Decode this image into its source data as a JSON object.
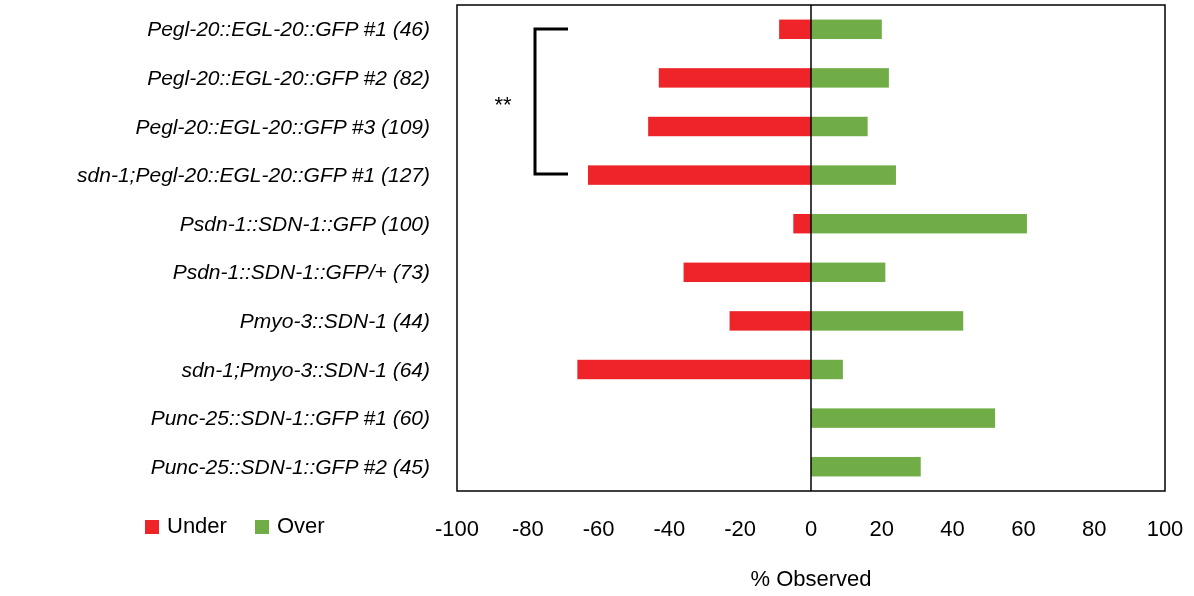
{
  "chart_data": {
    "type": "bar",
    "orientation": "horizontal",
    "stacked": true,
    "categories": [
      "Pegl-20::EGL-20::GFP #1 (46)",
      "Pegl-20::EGL-20::GFP #2 (82)",
      "Pegl-20::EGL-20::GFP #3 (109)",
      "sdn-1;Pegl-20::EGL-20::GFP #1 (127)",
      "Psdn-1::SDN-1::GFP (100)",
      "Psdn-1::SDN-1::GFP/+ (73)",
      "Pmyo-3::SDN-1 (44)",
      "sdn-1;Pmyo-3::SDN-1 (64)",
      "Punc-25::SDN-1::GFP #1 (60)",
      "Punc-25::SDN-1::GFP #2 (45)"
    ],
    "series": [
      {
        "name": "Under",
        "color": "#ee2428",
        "values": [
          -9,
          -43,
          -46,
          -63,
          -5,
          -36,
          -23,
          -66,
          0,
          0
        ]
      },
      {
        "name": "Over",
        "color": "#70ad47",
        "values": [
          20,
          22,
          16,
          24,
          61,
          21,
          43,
          9,
          52,
          31
        ]
      }
    ],
    "xlim": [
      -100,
      100
    ],
    "xticks": [
      -100,
      -80,
      -60,
      -40,
      -20,
      0,
      20,
      40,
      60,
      80,
      100
    ],
    "xlabel": "% Observed",
    "legend": "bottom left",
    "annotations": [
      "**"
    ]
  }
}
